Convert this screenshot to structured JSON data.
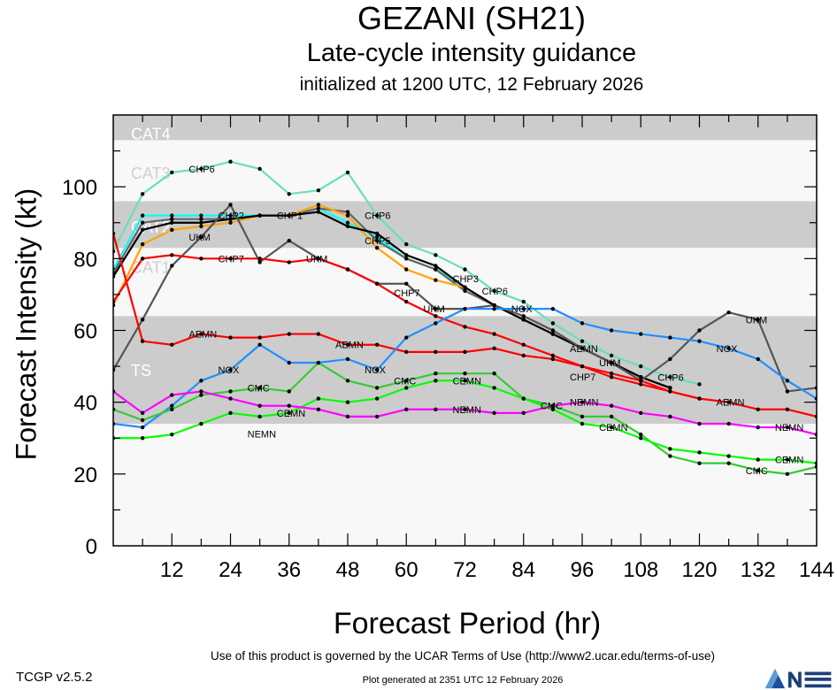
{
  "header": {
    "title": "GEZANI (SH21)",
    "subtitle": "Late-cycle intensity guidance",
    "initialized": "initialized at 1200 UTC, 12 February 2026"
  },
  "footer": {
    "terms": "Use of this product is governed by the UCAR Terms of Use (http://www2.ucar.edu/terms-of-use)",
    "version": "TCGP v2.5.2",
    "generated": "Plot generated at 2351 UTC   12 February 2026",
    "logo_text": "NCAR"
  },
  "chart_data": {
    "type": "line",
    "xlabel": "Forecast Period (hr)",
    "ylabel": "Forecast Intensity (kt)",
    "xlim": [
      0,
      144
    ],
    "ylim": [
      0,
      120
    ],
    "xticks": [
      12,
      24,
      36,
      48,
      60,
      72,
      84,
      96,
      108,
      120,
      132,
      144
    ],
    "yticks": [
      0,
      20,
      40,
      60,
      80,
      100
    ],
    "bands": [
      {
        "label": "TS",
        "min": 34,
        "max": 64,
        "shade": "#cccccc"
      },
      {
        "label": "CAT1",
        "min": 64,
        "max": 83,
        "shade": "#f8f8f8"
      },
      {
        "label": "CAT2",
        "min": 83,
        "max": 96,
        "shade": "#cccccc"
      },
      {
        "label": "CAT3",
        "min": 96,
        "max": 113,
        "shade": "#f8f8f8"
      },
      {
        "label": "CAT4",
        "min": 113,
        "max": 137,
        "shade": "#cccccc"
      }
    ],
    "x": [
      0,
      6,
      12,
      18,
      24,
      30,
      36,
      42,
      48,
      54,
      60,
      66,
      72,
      78,
      84,
      90,
      96,
      102,
      108,
      114,
      120,
      126,
      132,
      138,
      144
    ],
    "series": [
      {
        "name": "CHP6",
        "color": "#66e0b8",
        "values": [
          82,
          98,
          104,
          105,
          107,
          105,
          98,
          99,
          104,
          92,
          84,
          81,
          77,
          71,
          68,
          62,
          57,
          53,
          50,
          47,
          45,
          null,
          null,
          null,
          null
        ]
      },
      {
        "name": "CHP2",
        "color": "#00ffff",
        "values": [
          77,
          92,
          92,
          92,
          92,
          92,
          92,
          94,
          90,
          86,
          80,
          77,
          72,
          67,
          63,
          59,
          55,
          51,
          47,
          44,
          null,
          null,
          null,
          null,
          null
        ]
      },
      {
        "name": "CHP5",
        "color": "#666666",
        "values": [
          76,
          90,
          91,
          91,
          91,
          92,
          92,
          94,
          93,
          85,
          80,
          77,
          71,
          67,
          63,
          59,
          55,
          51,
          47,
          44,
          null,
          null,
          null,
          null,
          null
        ]
      },
      {
        "name": "CHP1",
        "color": "#ffa500",
        "values": [
          67,
          84,
          88,
          89,
          90,
          92,
          92,
          95,
          92,
          83,
          77,
          74,
          72,
          67,
          63,
          59,
          55,
          51,
          47,
          44,
          null,
          null,
          null,
          null,
          null
        ]
      },
      {
        "name": "CHP3",
        "color": "#000000",
        "values": [
          75,
          88,
          90,
          90,
          91,
          92,
          92,
          93,
          89,
          87,
          81,
          78,
          72,
          67,
          63,
          59,
          55,
          51,
          47,
          44,
          null,
          null,
          null,
          null,
          null
        ]
      },
      {
        "name": "UKM",
        "color": "#555555",
        "values": [
          49,
          63,
          78,
          86,
          95,
          79,
          85,
          80,
          77,
          73,
          73,
          66,
          66,
          67,
          64,
          60,
          55,
          51,
          46,
          52,
          60,
          65,
          63,
          43,
          44
        ]
      },
      {
        "name": "CHP7",
        "color": "#ff0000",
        "values": [
          68,
          80,
          81,
          80,
          80,
          80,
          79,
          80,
          77,
          73,
          68,
          64,
          61,
          59,
          56,
          53,
          50,
          47,
          45,
          43,
          41,
          null,
          null,
          null,
          null
        ]
      },
      {
        "name": "AEMN",
        "color": "#ff0000",
        "values": [
          87,
          57,
          56,
          59,
          58,
          58,
          59,
          59,
          56,
          56,
          54,
          54,
          54,
          55,
          53,
          52,
          50,
          48,
          46,
          43,
          41,
          40,
          38,
          38,
          36
        ]
      },
      {
        "name": "NGX",
        "color": "#1e90ff",
        "values": [
          34,
          33,
          39,
          46,
          49,
          56,
          51,
          51,
          52,
          49,
          58,
          62,
          66,
          66,
          66,
          66,
          62,
          60,
          59,
          58,
          57,
          55,
          52,
          46,
          41
        ]
      },
      {
        "name": "CMC",
        "color": "#33cc33",
        "values": [
          38,
          35,
          38,
          42,
          43,
          44,
          43,
          51,
          46,
          44,
          46,
          48,
          48,
          48,
          41,
          39,
          36,
          36,
          31,
          25,
          23,
          23,
          21,
          20,
          22
        ]
      },
      {
        "name": "CEMN",
        "color": "#00ff00",
        "values": [
          30,
          30,
          31,
          34,
          37,
          36,
          37,
          41,
          40,
          41,
          44,
          46,
          46,
          44,
          41,
          38,
          34,
          33,
          30,
          27,
          26,
          25,
          24,
          24,
          23
        ]
      },
      {
        "name": "NEMN",
        "color": "#ff00ff",
        "values": [
          43,
          37,
          42,
          43,
          41,
          39,
          39,
          38,
          36,
          36,
          38,
          38,
          38,
          37,
          37,
          39,
          40,
          39,
          37,
          36,
          34,
          34,
          33,
          33,
          31
        ]
      }
    ]
  }
}
